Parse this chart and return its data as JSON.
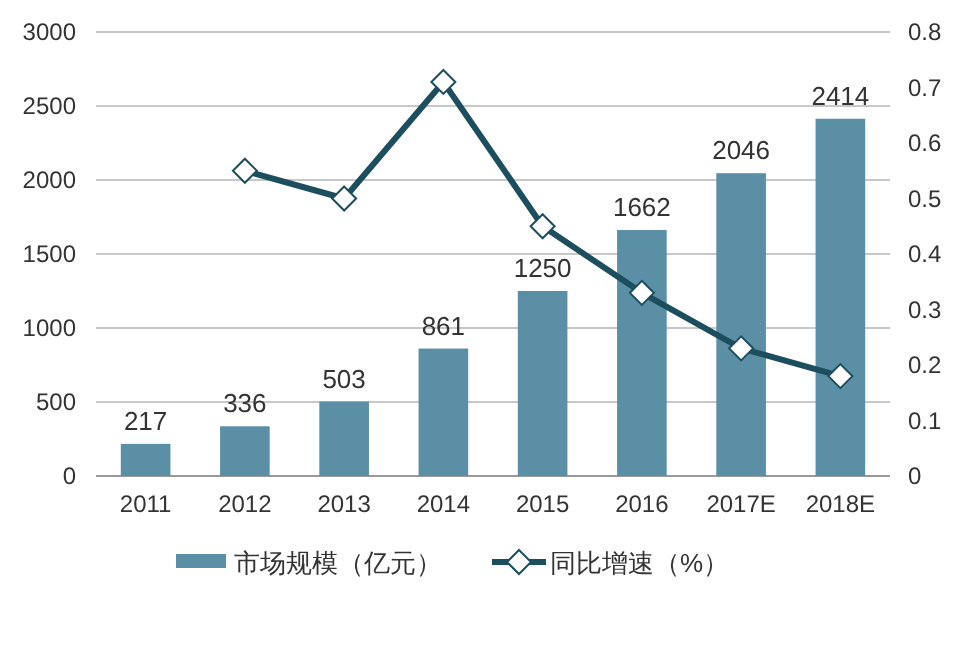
{
  "chart_data": {
    "type": "bar",
    "categories": [
      "2011",
      "2012",
      "2013",
      "2014",
      "2015",
      "2016",
      "2017E",
      "2018E"
    ],
    "series": [
      {
        "name": "市场规模（亿元）",
        "color": "#5b8fa6",
        "values": [
          217,
          336,
          503,
          861,
          1250,
          1662,
          2046,
          2414
        ],
        "value_labels": [
          "217",
          "336",
          "503",
          "861",
          "1250",
          "1662",
          "2046",
          "2414"
        ]
      },
      {
        "name": "同比增速（%）",
        "type": "line",
        "axis": "y2",
        "color": "#1d4e5e",
        "marker": "diamond",
        "values": [
          null,
          0.55,
          0.5,
          0.71,
          0.45,
          0.33,
          0.23,
          0.18
        ]
      }
    ],
    "ylim": [
      0,
      3000
    ],
    "yticks": [
      0,
      500,
      1000,
      1500,
      2000,
      2500,
      3000
    ],
    "y2lim": [
      0,
      0.8
    ],
    "y2ticks": [
      0,
      0.1,
      0.2,
      0.3,
      0.4,
      0.5,
      0.6,
      0.7,
      0.8
    ],
    "grid": "y",
    "legend": "bottom"
  }
}
